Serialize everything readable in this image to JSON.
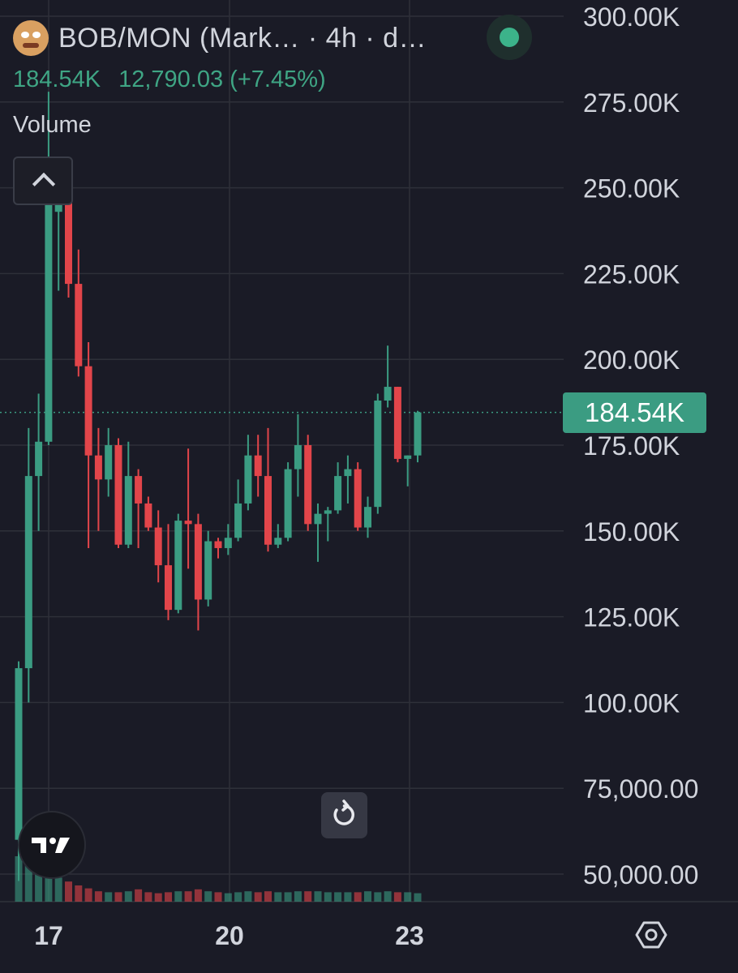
{
  "header": {
    "title": "BOB/MON (Mark… · 4h · d…",
    "last_price": "184.54K",
    "change": "12,790.03 (+7.45%)",
    "volume_label": "Volume"
  },
  "price_label": "184.54K",
  "colors": {
    "background": "#1a1b26",
    "up": "#3b9c82",
    "down": "#e2454a",
    "grid": "#2e3039",
    "axis_text": "#d1d4dc",
    "header_green": "#3fa584"
  },
  "icons": {
    "avatar": "pepe-avatar-icon",
    "status": "live-status-dot-icon",
    "collapse": "chevron-up-icon",
    "reset": "rotate-ccw-icon",
    "logo": "tradingview-logo-icon",
    "settings": "hexagon-settings-icon"
  },
  "chart_data": {
    "type": "candlestick",
    "y_axis_labels": [
      "300.00K",
      "275.00K",
      "250.00K",
      "225.00K",
      "200.00K",
      "175.00K",
      "150.00K",
      "125.00K",
      "100.00K",
      "75,000.00",
      "50,000.00"
    ],
    "y_axis_values": [
      300000,
      275000,
      250000,
      225000,
      200000,
      175000,
      150000,
      125000,
      100000,
      75000,
      50000
    ],
    "ylim": [
      42000,
      305000
    ],
    "x_axis_labels": [
      "17",
      "20",
      "23"
    ],
    "x_axis_label_index": [
      2,
      20,
      38
    ],
    "last_price": 184540,
    "candles": [
      {
        "o": 60000,
        "h": 112000,
        "l": 48000,
        "c": 110000
      },
      {
        "o": 110000,
        "h": 180000,
        "l": 100000,
        "c": 166000
      },
      {
        "o": 166000,
        "h": 190000,
        "l": 150000,
        "c": 176000
      },
      {
        "o": 176000,
        "h": 278000,
        "l": 175000,
        "c": 246000
      },
      {
        "o": 243000,
        "h": 252000,
        "l": 220000,
        "c": 246000
      },
      {
        "o": 246000,
        "h": 250000,
        "l": 218000,
        "c": 222000
      },
      {
        "o": 222000,
        "h": 232000,
        "l": 195000,
        "c": 198000
      },
      {
        "o": 198000,
        "h": 205000,
        "l": 145000,
        "c": 172000
      },
      {
        "o": 172000,
        "h": 180000,
        "l": 150000,
        "c": 165000
      },
      {
        "o": 165000,
        "h": 180000,
        "l": 160000,
        "c": 175000
      },
      {
        "o": 175000,
        "h": 177000,
        "l": 145000,
        "c": 146000
      },
      {
        "o": 146000,
        "h": 176000,
        "l": 145000,
        "c": 166000
      },
      {
        "o": 166000,
        "h": 168000,
        "l": 145000,
        "c": 158000
      },
      {
        "o": 158000,
        "h": 160000,
        "l": 150000,
        "c": 151000
      },
      {
        "o": 151000,
        "h": 156000,
        "l": 135000,
        "c": 140000
      },
      {
        "o": 140000,
        "h": 152000,
        "l": 124000,
        "c": 127000
      },
      {
        "o": 127000,
        "h": 155000,
        "l": 126000,
        "c": 153000
      },
      {
        "o": 153000,
        "h": 174000,
        "l": 139000,
        "c": 152000
      },
      {
        "o": 152000,
        "h": 155000,
        "l": 121000,
        "c": 130000
      },
      {
        "o": 130000,
        "h": 150000,
        "l": 128000,
        "c": 147000
      },
      {
        "o": 147000,
        "h": 148000,
        "l": 142000,
        "c": 145000
      },
      {
        "o": 145000,
        "h": 152000,
        "l": 143000,
        "c": 148000
      },
      {
        "o": 148000,
        "h": 165000,
        "l": 147000,
        "c": 158000
      },
      {
        "o": 158000,
        "h": 178000,
        "l": 156000,
        "c": 172000
      },
      {
        "o": 172000,
        "h": 178000,
        "l": 160000,
        "c": 166000
      },
      {
        "o": 166000,
        "h": 180000,
        "l": 144000,
        "c": 146000
      },
      {
        "o": 146000,
        "h": 152000,
        "l": 145000,
        "c": 148000
      },
      {
        "o": 148000,
        "h": 170000,
        "l": 147000,
        "c": 168000
      },
      {
        "o": 168000,
        "h": 184000,
        "l": 160000,
        "c": 175000
      },
      {
        "o": 175000,
        "h": 178000,
        "l": 150000,
        "c": 152000
      },
      {
        "o": 152000,
        "h": 158000,
        "l": 141000,
        "c": 155000
      },
      {
        "o": 155000,
        "h": 157000,
        "l": 147000,
        "c": 156000
      },
      {
        "o": 156000,
        "h": 170000,
        "l": 155000,
        "c": 166000
      },
      {
        "o": 166000,
        "h": 172000,
        "l": 158000,
        "c": 168000
      },
      {
        "o": 168000,
        "h": 170000,
        "l": 150000,
        "c": 151000
      },
      {
        "o": 151000,
        "h": 160000,
        "l": 148000,
        "c": 157000
      },
      {
        "o": 157000,
        "h": 190000,
        "l": 155000,
        "c": 188000
      },
      {
        "o": 188000,
        "h": 204000,
        "l": 186000,
        "c": 192000
      },
      {
        "o": 192000,
        "h": 192000,
        "l": 170000,
        "c": 171000
      },
      {
        "o": 171000,
        "h": 172000,
        "l": 163000,
        "c": 172000
      },
      {
        "o": 172000,
        "h": 185000,
        "l": 170000,
        "c": 184540
      }
    ],
    "volume": [
      40,
      35,
      30,
      30,
      18,
      14,
      10,
      7,
      4,
      3,
      3,
      4,
      6,
      3,
      2,
      3,
      4,
      4,
      6,
      4,
      3,
      2,
      3,
      4,
      3,
      4,
      3,
      3,
      4,
      4,
      4,
      3,
      3,
      3,
      3,
      4,
      3,
      4,
      3,
      3,
      2
    ]
  }
}
